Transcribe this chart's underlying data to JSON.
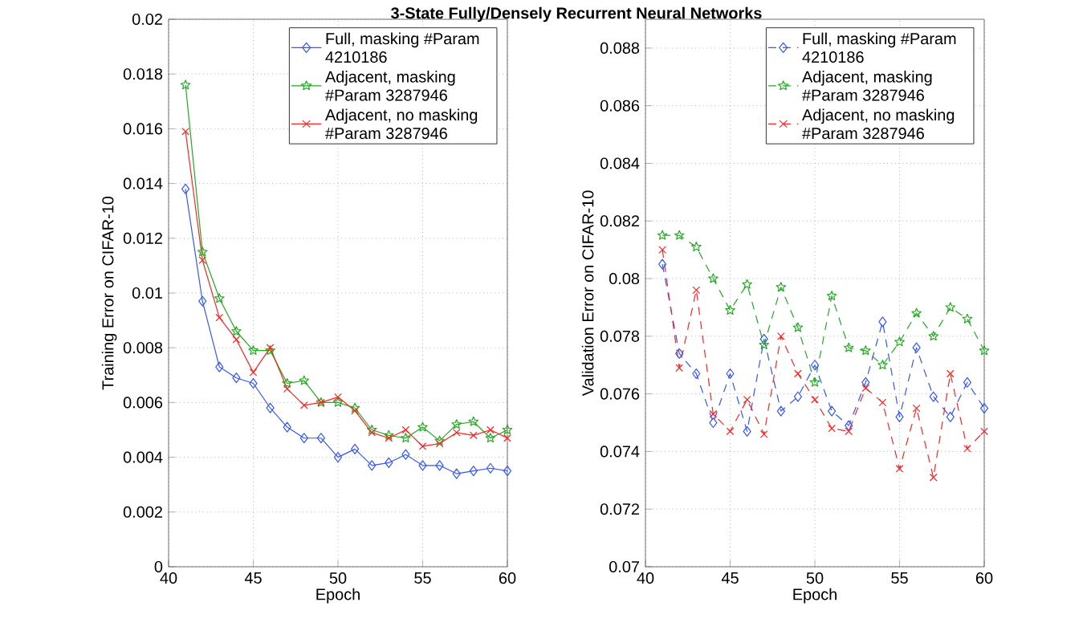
{
  "chart_data": [
    {
      "type": "line",
      "title": "3-State Fully/Densely Recurrent Neural Networks",
      "xlabel": "Epoch",
      "ylabel": "Training Error on CIFAR-10",
      "x": [
        41,
        42,
        43,
        44,
        45,
        46,
        47,
        48,
        49,
        50,
        51,
        52,
        53,
        54,
        55,
        56,
        57,
        58,
        59,
        60
      ],
      "xlim": [
        40,
        60
      ],
      "xticks": [
        40,
        45,
        50,
        55,
        60
      ],
      "ylim": [
        0,
        0.02
      ],
      "yticks": [
        0,
        0.002,
        0.004,
        0.006,
        0.008,
        0.01,
        0.012,
        0.014,
        0.016,
        0.018,
        0.02
      ],
      "grid": true,
      "legend": "top right",
      "line_style": "solid",
      "series": [
        {
          "name": "Full, masking #Param 4210186",
          "color": "#3355ff",
          "marker": "diamond",
          "values": [
            0.0138,
            0.0097,
            0.0073,
            0.0069,
            0.0067,
            0.0058,
            0.0051,
            0.0047,
            0.0047,
            0.004,
            0.0043,
            0.0037,
            0.0038,
            0.0041,
            0.0037,
            0.0037,
            0.0034,
            0.0035,
            0.0036,
            0.0035
          ]
        },
        {
          "name": "Adjacent, masking #Param 3287946",
          "color": "#22aa22",
          "marker": "star",
          "values": [
            0.0176,
            0.0115,
            0.0098,
            0.0086,
            0.0079,
            0.0079,
            0.0067,
            0.0068,
            0.006,
            0.006,
            0.0058,
            0.005,
            0.0048,
            0.0047,
            0.0051,
            0.0046,
            0.0052,
            0.0053,
            0.0047,
            0.005
          ]
        },
        {
          "name": "Adjacent, no masking #Param 3287946",
          "color": "#ff2222",
          "marker": "cross",
          "values": [
            0.0159,
            0.0112,
            0.0091,
            0.0083,
            0.0071,
            0.008,
            0.0065,
            0.0059,
            0.006,
            0.0062,
            0.0057,
            0.0049,
            0.0047,
            0.005,
            0.0044,
            0.0045,
            0.0049,
            0.0048,
            0.005,
            0.0047
          ]
        }
      ]
    },
    {
      "type": "line",
      "xlabel": "Epoch",
      "ylabel": "Validation Error on CIFAR-10",
      "x": [
        41,
        42,
        43,
        44,
        45,
        46,
        47,
        48,
        49,
        50,
        51,
        52,
        53,
        54,
        55,
        56,
        57,
        58,
        59,
        60
      ],
      "xlim": [
        40,
        60
      ],
      "xticks": [
        40,
        45,
        50,
        55,
        60
      ],
      "ylim": [
        0.07,
        0.089
      ],
      "yticks": [
        0.07,
        0.072,
        0.074,
        0.076,
        0.078,
        0.08,
        0.082,
        0.084,
        0.086,
        0.088
      ],
      "grid": true,
      "legend": "top right",
      "line_style": "dashed",
      "series": [
        {
          "name": "Full, masking #Param 4210186",
          "color": "#3355ff",
          "marker": "diamond",
          "values": [
            0.0805,
            0.0774,
            0.0767,
            0.075,
            0.0767,
            0.0747,
            0.0779,
            0.0754,
            0.0759,
            0.077,
            0.0754,
            0.0749,
            0.0764,
            0.0785,
            0.0752,
            0.0776,
            0.0759,
            0.0752,
            0.0764,
            0.0755
          ]
        },
        {
          "name": "Adjacent, masking #Param 3287946",
          "color": "#22aa22",
          "marker": "star",
          "values": [
            0.0815,
            0.0815,
            0.0811,
            0.08,
            0.0789,
            0.0798,
            0.0777,
            0.0797,
            0.0783,
            0.0764,
            0.0794,
            0.0776,
            0.0775,
            0.077,
            0.0778,
            0.0788,
            0.078,
            0.079,
            0.0786,
            0.0775
          ]
        },
        {
          "name": "Adjacent, no masking #Param 3287946",
          "color": "#ff2222",
          "marker": "cross",
          "values": [
            0.081,
            0.0769,
            0.0796,
            0.0753,
            0.0747,
            0.0758,
            0.0746,
            0.078,
            0.0767,
            0.0758,
            0.0748,
            0.0747,
            0.0762,
            0.0757,
            0.0734,
            0.0755,
            0.0731,
            0.0767,
            0.0741,
            0.0747
          ]
        }
      ]
    }
  ]
}
